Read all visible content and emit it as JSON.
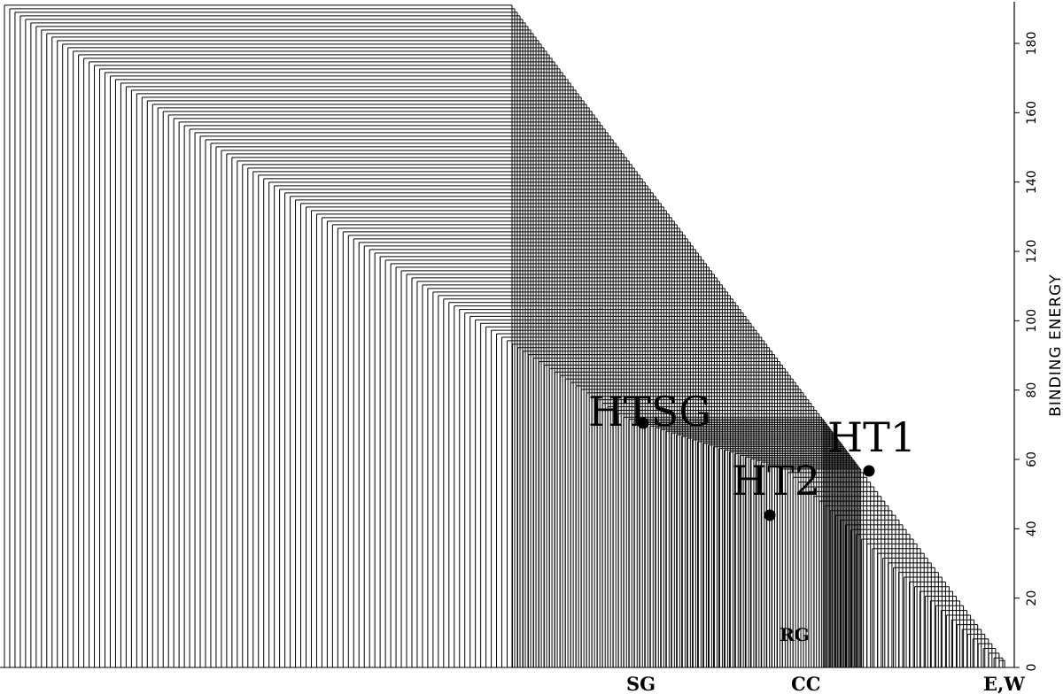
{
  "chart_data": {
    "type": "dendrogram",
    "ylabel": "BINDING ENERGY",
    "ylim": [
      0,
      192
    ],
    "yticks": [
      0,
      20,
      40,
      60,
      80,
      100,
      120,
      140,
      160,
      180
    ],
    "leaf_count": 190,
    "staircase_top_energy": 191,
    "nodes": [
      {
        "name": "HTSG",
        "energy": 71
      },
      {
        "name": "HT1",
        "energy": 57
      },
      {
        "name": "HT2",
        "energy": 44
      }
    ],
    "region_labels": [
      "RG",
      "SG",
      "CC",
      "E,W"
    ]
  }
}
